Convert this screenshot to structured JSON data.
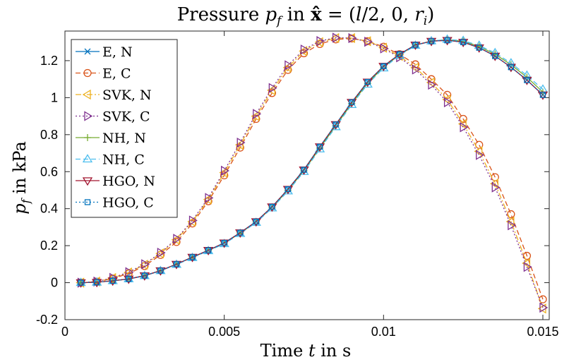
{
  "chart_data": {
    "type": "line",
    "title": "Pressure p_f in x̂ = (l/2, 0, r_i)",
    "title_parts": {
      "a": "Pressure ",
      "b": "p",
      "c": "f",
      "d": " in ",
      "e": "x̂",
      "f": " = (",
      "g": "l",
      "h": "/2, 0, ",
      "i": "r",
      "j": "i",
      "k": ")"
    },
    "xlabel": "Time t in s",
    "xlabel_parts": {
      "a": "Time ",
      "b": "t",
      "c": " in s"
    },
    "ylabel": "p_f in kPa",
    "ylabel_parts": {
      "a": "p",
      "b": "f",
      "c": " in kPa"
    },
    "xlim": [
      0,
      0.0152
    ],
    "ylim": [
      -0.2,
      1.36
    ],
    "xticks": [
      0,
      0.005,
      0.01,
      0.015
    ],
    "xtick_labels": [
      "0",
      "0.005",
      "0.01",
      "0.015"
    ],
    "yticks": [
      -0.2,
      0,
      0.2,
      0.4,
      0.6,
      0.8,
      1,
      1.2
    ],
    "ytick_labels": [
      "-0.2",
      "0",
      "0.2",
      "0.4",
      "0.6",
      "0.8",
      "1",
      "1.2"
    ],
    "grid": false,
    "legend_position": "top-left",
    "x": [
      0.0005,
      0.001,
      0.0015,
      0.002,
      0.0025,
      0.003,
      0.0035,
      0.004,
      0.0045,
      0.005,
      0.0055,
      0.006,
      0.0065,
      0.007,
      0.0075,
      0.008,
      0.0085,
      0.009,
      0.0095,
      0.01,
      0.0105,
      0.011,
      0.0115,
      0.012,
      0.0125,
      0.013,
      0.0135,
      0.014,
      0.0145,
      0.015
    ],
    "series": [
      {
        "name": "E, N",
        "color": "#0072BD",
        "linestyle": "solid",
        "marker": "x",
        "values": [
          0.0,
          0.002,
          0.01,
          0.02,
          0.038,
          0.065,
          0.1,
          0.138,
          0.175,
          0.215,
          0.27,
          0.33,
          0.41,
          0.505,
          0.61,
          0.735,
          0.855,
          0.975,
          1.085,
          1.17,
          1.235,
          1.285,
          1.305,
          1.31,
          1.3,
          1.27,
          1.225,
          1.165,
          1.095,
          1.015
        ]
      },
      {
        "name": "E, C",
        "color": "#D95319",
        "linestyle": "dashed",
        "marker": "o",
        "values": [
          0.0,
          0.005,
          0.022,
          0.05,
          0.09,
          0.15,
          0.22,
          0.32,
          0.44,
          0.58,
          0.73,
          0.885,
          1.025,
          1.15,
          1.24,
          1.29,
          1.315,
          1.32,
          1.305,
          1.275,
          1.235,
          1.18,
          1.1,
          1.015,
          0.885,
          0.745,
          0.57,
          0.37,
          0.145,
          -0.09
        ]
      },
      {
        "name": "SVK, N",
        "color": "#EDB120",
        "linestyle": "dashdot",
        "marker": "triangle-left",
        "values": [
          0.0,
          0.006,
          0.025,
          0.055,
          0.097,
          0.158,
          0.232,
          0.33,
          0.45,
          0.595,
          0.745,
          0.9,
          1.04,
          1.163,
          1.252,
          1.3,
          1.322,
          1.322,
          1.305,
          1.27,
          1.225,
          1.162,
          1.082,
          0.99,
          0.858,
          0.71,
          0.535,
          0.33,
          0.105,
          -0.14
        ]
      },
      {
        "name": "SVK, C",
        "color": "#7E2F8E",
        "linestyle": "dotted",
        "marker": "triangle-right",
        "values": [
          0.0,
          0.006,
          0.026,
          0.057,
          0.1,
          0.162,
          0.237,
          0.336,
          0.458,
          0.605,
          0.757,
          0.912,
          1.052,
          1.175,
          1.26,
          1.306,
          1.324,
          1.322,
          1.302,
          1.266,
          1.218,
          1.152,
          1.07,
          0.975,
          0.84,
          0.69,
          0.515,
          0.31,
          0.085,
          -0.135
        ]
      },
      {
        "name": "NH, N",
        "color": "#77AC30",
        "linestyle": "solid",
        "marker": "plus",
        "values": [
          0.0,
          0.002,
          0.01,
          0.02,
          0.038,
          0.065,
          0.1,
          0.137,
          0.174,
          0.213,
          0.268,
          0.328,
          0.407,
          0.5,
          0.605,
          0.728,
          0.848,
          0.968,
          1.078,
          1.165,
          1.232,
          1.284,
          1.306,
          1.313,
          1.305,
          1.277,
          1.235,
          1.178,
          1.11,
          1.03
        ]
      },
      {
        "name": "NH, C",
        "color": "#4DBEEE",
        "linestyle": "dashed",
        "marker": "triangle-up",
        "values": [
          0.0,
          0.002,
          0.01,
          0.02,
          0.037,
          0.064,
          0.098,
          0.135,
          0.172,
          0.21,
          0.265,
          0.325,
          0.403,
          0.495,
          0.6,
          0.722,
          0.842,
          0.962,
          1.072,
          1.16,
          1.228,
          1.282,
          1.306,
          1.315,
          1.308,
          1.282,
          1.242,
          1.187,
          1.12,
          1.045
        ]
      },
      {
        "name": "HGO, N",
        "color": "#A2142F",
        "linestyle": "solid",
        "marker": "triangle-down",
        "values": [
          0.0,
          0.002,
          0.01,
          0.02,
          0.038,
          0.065,
          0.1,
          0.138,
          0.175,
          0.215,
          0.27,
          0.33,
          0.41,
          0.505,
          0.61,
          0.735,
          0.855,
          0.975,
          1.085,
          1.17,
          1.235,
          1.285,
          1.305,
          1.31,
          1.3,
          1.27,
          1.225,
          1.165,
          1.095,
          1.015
        ]
      },
      {
        "name": "HGO, C",
        "color": "#0072BD",
        "linestyle": "dotted",
        "marker": "square",
        "values": [
          0.0,
          0.002,
          0.01,
          0.02,
          0.038,
          0.065,
          0.1,
          0.138,
          0.175,
          0.215,
          0.27,
          0.33,
          0.41,
          0.505,
          0.61,
          0.735,
          0.855,
          0.975,
          1.085,
          1.17,
          1.235,
          1.285,
          1.305,
          1.31,
          1.3,
          1.27,
          1.225,
          1.165,
          1.095,
          1.015
        ]
      }
    ]
  }
}
